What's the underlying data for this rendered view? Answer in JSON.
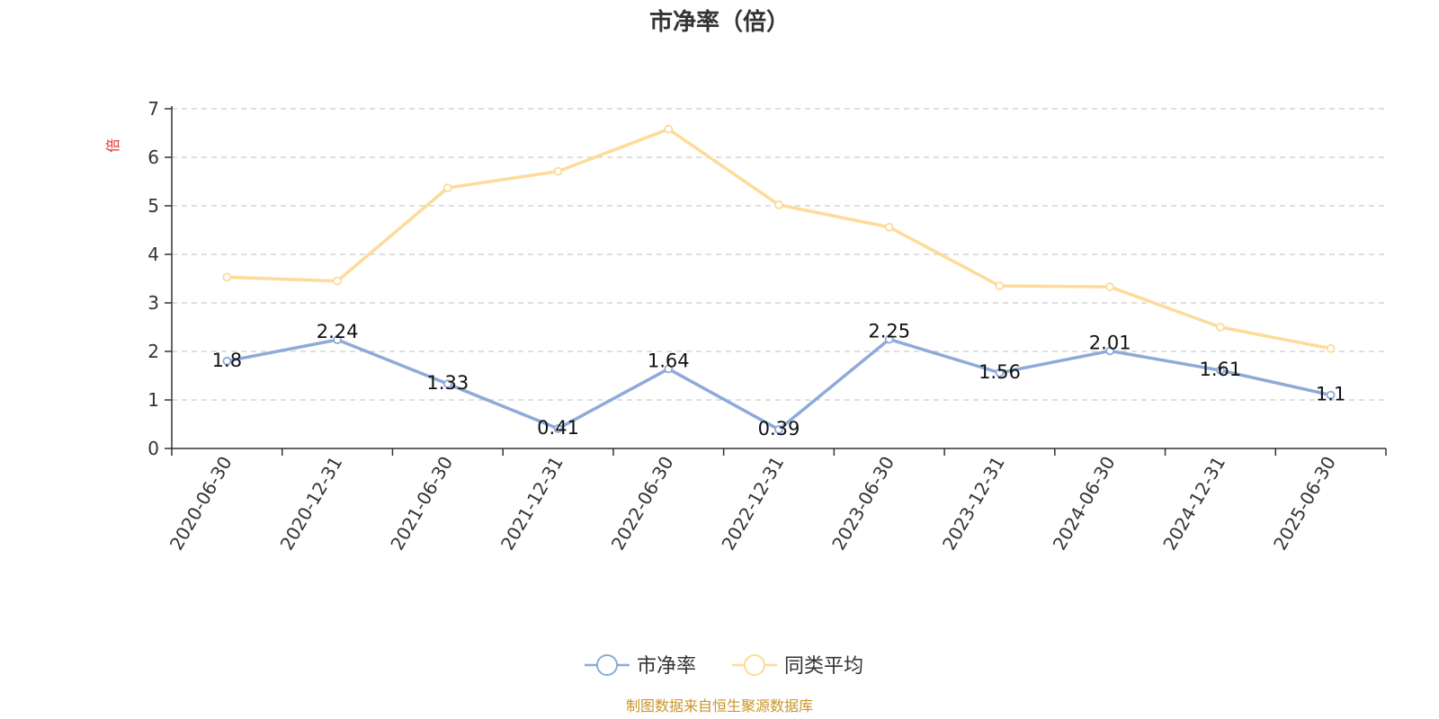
{
  "chart_data": {
    "type": "line",
    "title": "市净率（倍）",
    "unit": "倍",
    "x": [
      "2020-06-30",
      "2020-12-31",
      "2021-06-30",
      "2021-12-31",
      "2022-06-30",
      "2022-12-31",
      "2023-06-30",
      "2023-12-31",
      "2024-06-30",
      "2024-12-31",
      "2025-06-30"
    ],
    "ylim": [
      0,
      7
    ],
    "yticks": [
      "0",
      "1",
      "2",
      "3",
      "4",
      "5",
      "6",
      "7"
    ],
    "grid": true,
    "legend_position": "bottom-center",
    "series": [
      {
        "name": "市净率",
        "color": "#8eaad8",
        "values": [
          1.8,
          2.24,
          1.33,
          0.41,
          1.64,
          0.39,
          2.25,
          1.56,
          2.01,
          1.61,
          1.1
        ],
        "labels": [
          "1.8",
          "2.24",
          "1.33",
          "0.41",
          "1.64",
          "0.39",
          "2.25",
          "1.56",
          "2.01",
          "1.61",
          "1.1"
        ]
      },
      {
        "name": "同类平均",
        "color": "#fddb9a",
        "values": [
          3.53,
          3.45,
          5.37,
          5.71,
          6.58,
          5.02,
          4.56,
          3.35,
          3.33,
          2.5,
          2.06
        ]
      }
    ],
    "source": "制图数据来自恒生聚源数据库"
  }
}
